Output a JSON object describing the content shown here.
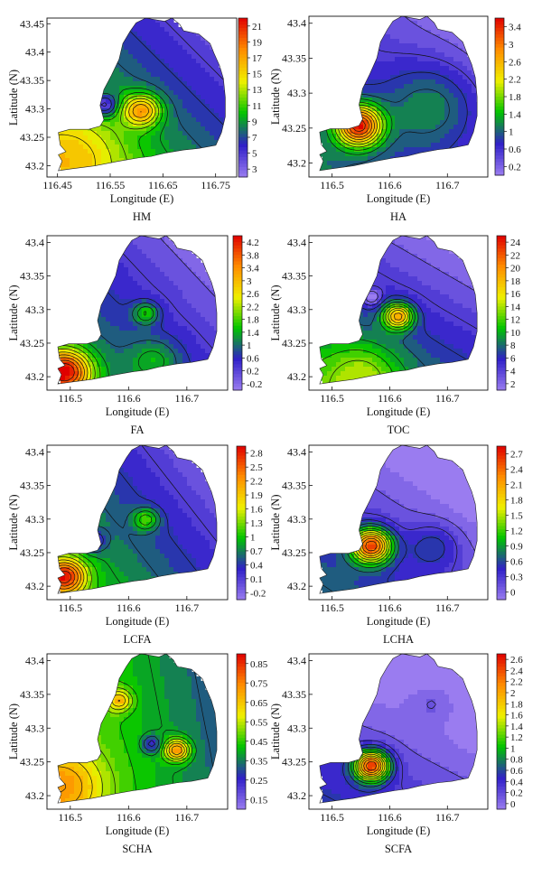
{
  "chart_data": [
    {
      "type": "heatmap",
      "title": "HM",
      "xlabel": "Longitude (E)",
      "ylabel": "Latitude (N)",
      "xticks": [
        "116.45",
        "116.55",
        "116.65",
        "116.75"
      ],
      "yticks": [
        "43.45",
        "43.4",
        "43.35",
        "43.3",
        "43.25",
        "43.2"
      ],
      "xlim": [
        116.43,
        116.79
      ],
      "ylim": [
        43.18,
        43.46
      ],
      "colorbar": [
        "21",
        "19",
        "17",
        "15",
        "13",
        "11",
        "9",
        "7",
        "5",
        "3"
      ],
      "crange": [
        2,
        22
      ]
    },
    {
      "type": "heatmap",
      "title": "HA",
      "xlabel": "Longitude (E)",
      "ylabel": "Latitude (N)",
      "xticks": [
        "116.5",
        "116.6",
        "116.7"
      ],
      "yticks": [
        "43.4",
        "43.35",
        "43.3",
        "43.25",
        "43.2"
      ],
      "xlim": [
        116.46,
        116.77
      ],
      "ylim": [
        43.18,
        43.41
      ],
      "colorbar": [
        "3.4",
        "3",
        "2.6",
        "2.2",
        "1.8",
        "1.4",
        "1",
        "0.6",
        "0.2"
      ],
      "crange": [
        0,
        3.6
      ]
    },
    {
      "type": "heatmap",
      "title": "FA",
      "xlabel": "Longitude (E)",
      "ylabel": "Latitude (N)",
      "xticks": [
        "116.5",
        "116.6",
        "116.7"
      ],
      "yticks": [
        "43.4",
        "43.35",
        "43.3",
        "43.25",
        "43.2"
      ],
      "xlim": [
        116.46,
        116.77
      ],
      "ylim": [
        43.18,
        43.41
      ],
      "colorbar": [
        "4.2",
        "3.8",
        "3.4",
        "3",
        "2.6",
        "2.2",
        "1.8",
        "1.4",
        "1",
        "0.6",
        "0.2",
        "-0.2"
      ],
      "crange": [
        -0.4,
        4.4
      ]
    },
    {
      "type": "heatmap",
      "title": "TOC",
      "xlabel": "Longitude (E)",
      "ylabel": "Latitude (N)",
      "xticks": [
        "116.5",
        "116.6",
        "116.7"
      ],
      "yticks": [
        "43.4",
        "43.35",
        "43.3",
        "43.25",
        "43.2"
      ],
      "xlim": [
        116.46,
        116.77
      ],
      "ylim": [
        43.18,
        43.41
      ],
      "colorbar": [
        "24",
        "22",
        "20",
        "18",
        "16",
        "14",
        "12",
        "10",
        "8",
        "6",
        "4",
        "2"
      ],
      "crange": [
        1,
        25
      ]
    },
    {
      "type": "heatmap",
      "title": "LCFA",
      "xlabel": "Longitude (E)",
      "ylabel": "Latitude (N)",
      "xticks": [
        "116.5",
        "116.6",
        "116.7"
      ],
      "yticks": [
        "43.4",
        "43.35",
        "43.3",
        "43.25",
        "43.2"
      ],
      "xlim": [
        116.46,
        116.77
      ],
      "ylim": [
        43.18,
        43.41
      ],
      "colorbar": [
        "2.8",
        "2.5",
        "2.2",
        "1.9",
        "1.6",
        "1.3",
        "1",
        "0.7",
        "0.4",
        "0.1",
        "-0.2"
      ],
      "crange": [
        -0.35,
        2.95
      ]
    },
    {
      "type": "heatmap",
      "title": "LCHA",
      "xlabel": "Longitude (E)",
      "ylabel": "Latitude (N)",
      "xticks": [
        "116.5",
        "116.6",
        "116.7"
      ],
      "yticks": [
        "43.4",
        "43.35",
        "43.3",
        "43.25",
        "43.2"
      ],
      "xlim": [
        116.46,
        116.77
      ],
      "ylim": [
        43.18,
        43.41
      ],
      "colorbar": [
        "2.7",
        "2.4",
        "2.1",
        "1.8",
        "1.5",
        "1.2",
        "0.9",
        "0.6",
        "0.3",
        "0"
      ],
      "crange": [
        -0.15,
        2.85
      ]
    },
    {
      "type": "heatmap",
      "title": "SCHA",
      "xlabel": "Longitude (E)",
      "ylabel": "Latitude (N)",
      "xticks": [
        "116.5",
        "116.6",
        "116.7"
      ],
      "yticks": [
        "43.4",
        "43.35",
        "43.3",
        "43.25",
        "43.2"
      ],
      "xlim": [
        116.46,
        116.77
      ],
      "ylim": [
        43.18,
        43.41
      ],
      "colorbar": [
        "0.85",
        "0.75",
        "0.65",
        "0.55",
        "0.45",
        "0.35",
        "0.25",
        "0.15"
      ],
      "crange": [
        0.1,
        0.9
      ]
    },
    {
      "type": "heatmap",
      "title": "SCFA",
      "xlabel": "Longitude (E)",
      "ylabel": "Latitude (N)",
      "xticks": [
        "116.5",
        "116.6",
        "116.7"
      ],
      "yticks": [
        "43.4",
        "43.35",
        "43.3",
        "43.25",
        "43.2"
      ],
      "xlim": [
        116.46,
        116.77
      ],
      "ylim": [
        43.18,
        43.41
      ],
      "colorbar": [
        "2.6",
        "2.4",
        "2.2",
        "2",
        "1.8",
        "1.6",
        "1.4",
        "1.2",
        "1",
        "0.8",
        "0.6",
        "0.4",
        "0.2",
        "0"
      ],
      "crange": [
        -0.1,
        2.7
      ]
    }
  ],
  "colormap": [
    "#9a7cf0",
    "#3020c8",
    "#00c400",
    "#f0f000",
    "#ff8c00",
    "#e00000"
  ]
}
